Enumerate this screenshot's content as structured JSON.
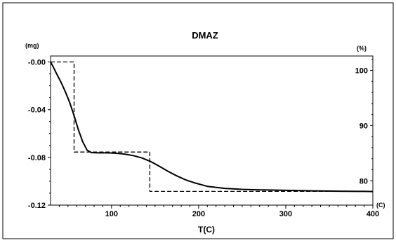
{
  "chart_data": {
    "type": "line",
    "title": "DMAZ",
    "xlabel": "T(C)",
    "x_unit_label": "(C)",
    "left_unit_label": "(mg)",
    "right_unit_label": "(%)",
    "xlim": [
      30,
      400
    ],
    "ylim_left": [
      -0.12,
      0.005
    ],
    "ylim_right": [
      75.6,
      102.6
    ],
    "x_ticks": [
      100,
      200,
      300,
      400
    ],
    "x_tick_labels": [
      "100",
      "200",
      "300",
      "400"
    ],
    "left_ticks": [
      0,
      -0.04,
      -0.08,
      -0.12
    ],
    "left_tick_labels": [
      "-0.00",
      "-0.04",
      "-0.08",
      "-0.12"
    ],
    "right_ticks": [
      100,
      90,
      80
    ],
    "right_tick_labels": [
      "100",
      "90",
      "80"
    ],
    "grid": false,
    "series": [
      {
        "axis": "left",
        "style": "solid",
        "x": [
          30,
          33,
          37,
          42,
          47,
          52,
          57,
          62,
          67,
          72,
          77,
          85,
          95,
          105,
          115,
          125,
          135,
          145,
          155,
          165,
          175,
          185,
          195,
          210,
          230,
          250,
          270,
          300,
          330,
          360,
          390,
          400
        ],
        "y": [
          0.0,
          -0.004,
          -0.01,
          -0.017,
          -0.025,
          -0.034,
          -0.045,
          -0.057,
          -0.067,
          -0.074,
          -0.076,
          -0.0762,
          -0.0762,
          -0.0765,
          -0.0772,
          -0.0785,
          -0.0805,
          -0.0835,
          -0.0875,
          -0.0918,
          -0.0955,
          -0.0988,
          -0.1013,
          -0.1043,
          -0.106,
          -0.1068,
          -0.1072,
          -0.1076,
          -0.108,
          -0.1083,
          -0.1085,
          -0.1086
        ]
      },
      {
        "axis": "left",
        "style": "dashed",
        "x": [
          30,
          57,
          57,
          144,
          144,
          400
        ],
        "y": [
          0.0,
          0.0,
          -0.0755,
          -0.0755,
          -0.1085,
          -0.1085
        ]
      }
    ]
  }
}
